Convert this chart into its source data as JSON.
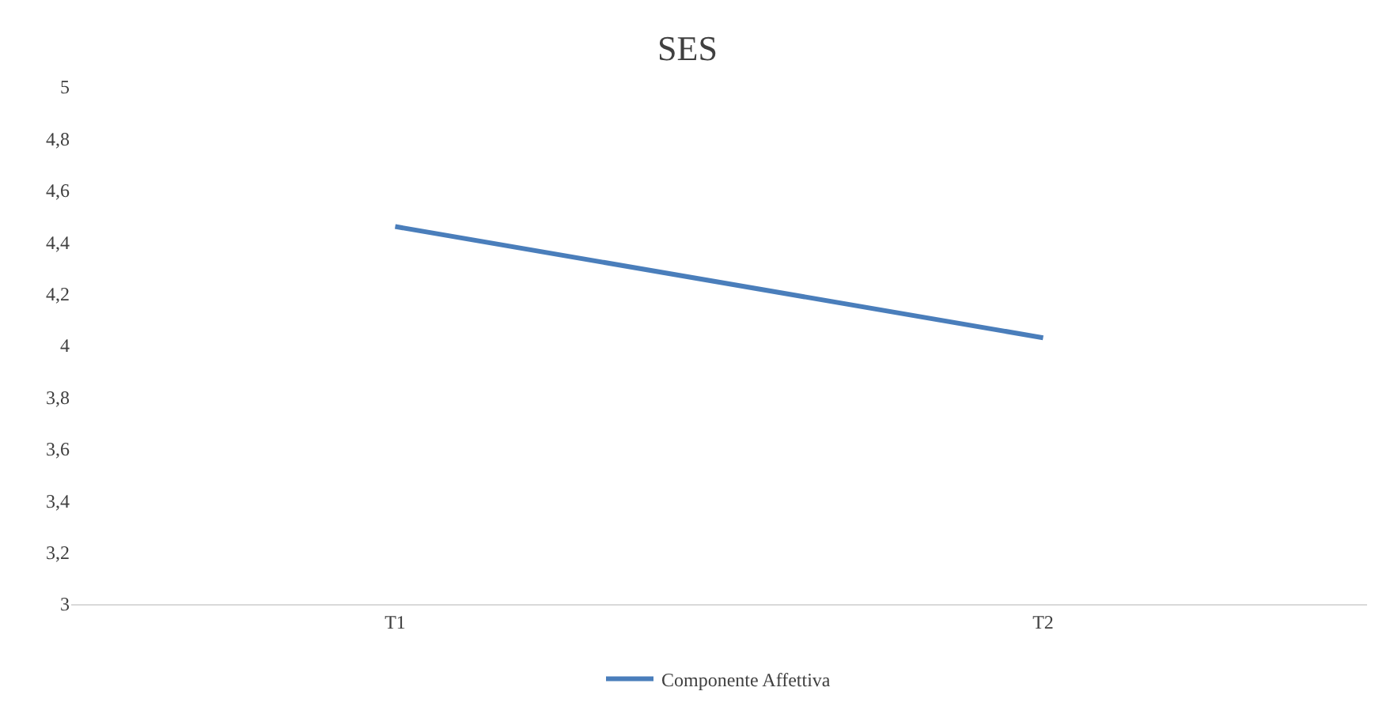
{
  "chart_data": {
    "type": "line",
    "title": "SES",
    "categories": [
      "T1",
      "T2"
    ],
    "series": [
      {
        "name": "Componente Affettiva",
        "color": "#4a7ebb",
        "values": [
          4.46,
          4.03
        ]
      }
    ],
    "ylim": [
      3,
      5
    ],
    "yticks": [
      3,
      {
        "value": 3.2,
        "label": "3,2"
      },
      {
        "value": 3.4,
        "label": "3,4"
      },
      {
        "value": 3.6,
        "label": "3,6"
      },
      {
        "value": 3.8,
        "label": "3,8"
      },
      4,
      {
        "value": 4.2,
        "label": "4,2"
      },
      {
        "value": 4.4,
        "label": "4,4"
      },
      {
        "value": 4.6,
        "label": "4,6"
      },
      {
        "value": 4.8,
        "label": "4,8"
      },
      5
    ],
    "grid": false,
    "legend": "bottom",
    "marker": "none",
    "line_style": "solid"
  }
}
